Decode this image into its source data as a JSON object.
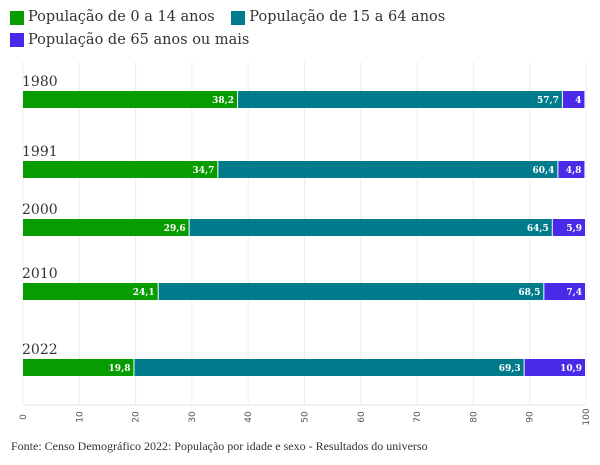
{
  "chart_data": {
    "type": "bar",
    "orientation": "horizontal-stacked",
    "categories": [
      "1980",
      "1991",
      "2000",
      "2010",
      "2022"
    ],
    "series": [
      {
        "name": "População de 0 a 14 anos",
        "color": "#079d00",
        "values": [
          38.2,
          34.7,
          29.6,
          24.1,
          19.8
        ],
        "labels": [
          "38,2",
          "34,7",
          "29,6",
          "24,1",
          "19,8"
        ]
      },
      {
        "name": "População de 15 a 64 anos",
        "color": "#007b8c",
        "values": [
          57.7,
          60.4,
          64.5,
          68.5,
          69.3
        ],
        "labels": [
          "57,7",
          "60,4",
          "64,5",
          "68,5",
          "69,3"
        ]
      },
      {
        "name": "População de 65 anos ou mais",
        "color": "#4a2ae8",
        "values": [
          4,
          4.8,
          5.9,
          7.4,
          10.9
        ],
        "labels": [
          "4",
          "4,8",
          "5,9",
          "7,4",
          "10,9"
        ]
      }
    ],
    "xlim": [
      0,
      100
    ],
    "xticks": [
      "0",
      "10",
      "20",
      "30",
      "40",
      "50",
      "60",
      "70",
      "80",
      "90",
      "100"
    ],
    "grid": true,
    "legend_position": "top-left"
  },
  "footer": "Fonte: Censo Demográfico 2022: População por idade e sexo - Resultados do universo"
}
